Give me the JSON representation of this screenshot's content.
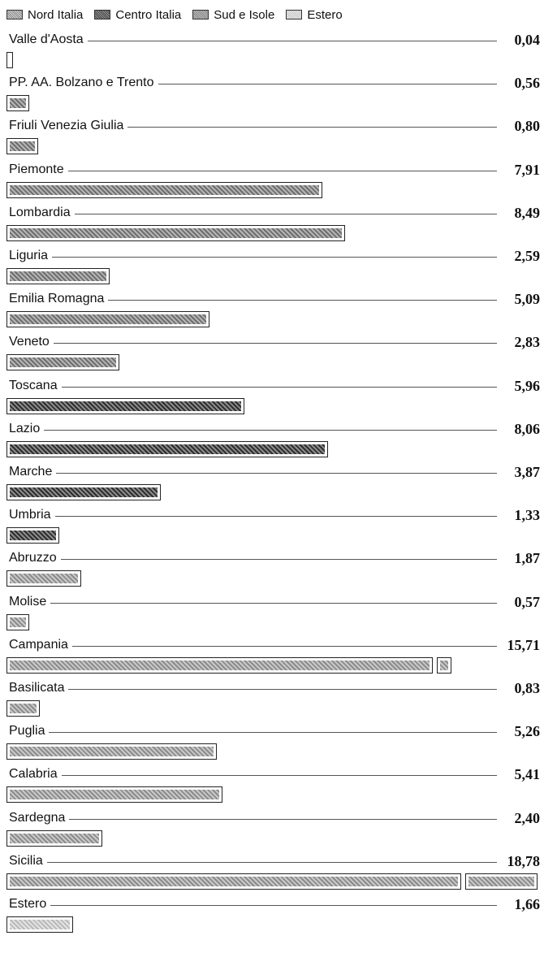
{
  "legend": [
    {
      "label": "Nord Italia",
      "group": "nord"
    },
    {
      "label": "Centro Italia",
      "group": "centro"
    },
    {
      "label": "Sud e Isole",
      "group": "sud"
    },
    {
      "label": "Estero",
      "group": "estero"
    }
  ],
  "chart_data": {
    "type": "bar",
    "orientation": "horizontal",
    "categories": [
      "Valle d'Aosta",
      "PP. AA. Bolzano e Trento",
      "Friuli Venezia Giulia",
      "Piemonte",
      "Lombardia",
      "Liguria",
      "Emilia Romagna",
      "Veneto",
      "Toscana",
      "Lazio",
      "Marche",
      "Umbria",
      "Abruzzo",
      "Molise",
      "Campania",
      "Basilicata",
      "Puglia",
      "Calabria",
      "Sardegna",
      "Sicilia",
      "Estero"
    ],
    "values": [
      0.04,
      0.56,
      0.8,
      7.91,
      8.49,
      2.59,
      5.09,
      2.83,
      5.96,
      8.06,
      3.87,
      1.33,
      1.87,
      0.57,
      15.71,
      0.83,
      5.26,
      5.41,
      2.4,
      18.78,
      1.66
    ],
    "value_labels": [
      "0,04",
      "0,56",
      "0,80",
      "7,91",
      "8,49",
      "2,59",
      "5,09",
      "2,83",
      "5,96",
      "8,06",
      "3,87",
      "1,33",
      "1,87",
      "0,57",
      "15,71",
      "0,83",
      "5,26",
      "5,41",
      "2,40",
      "18,78",
      "1,66"
    ],
    "groups": [
      "nord",
      "nord",
      "nord",
      "nord",
      "nord",
      "nord",
      "nord",
      "nord",
      "centro",
      "centro",
      "centro",
      "centro",
      "sud",
      "sud",
      "sud",
      "sud",
      "sud",
      "sud",
      "sud",
      "sud",
      "estero"
    ],
    "xlim": [
      0,
      13.3
    ],
    "broken_axis_bars": [
      "Campania",
      "Sicilia"
    ],
    "title": "",
    "xlabel": "",
    "ylabel": ""
  }
}
